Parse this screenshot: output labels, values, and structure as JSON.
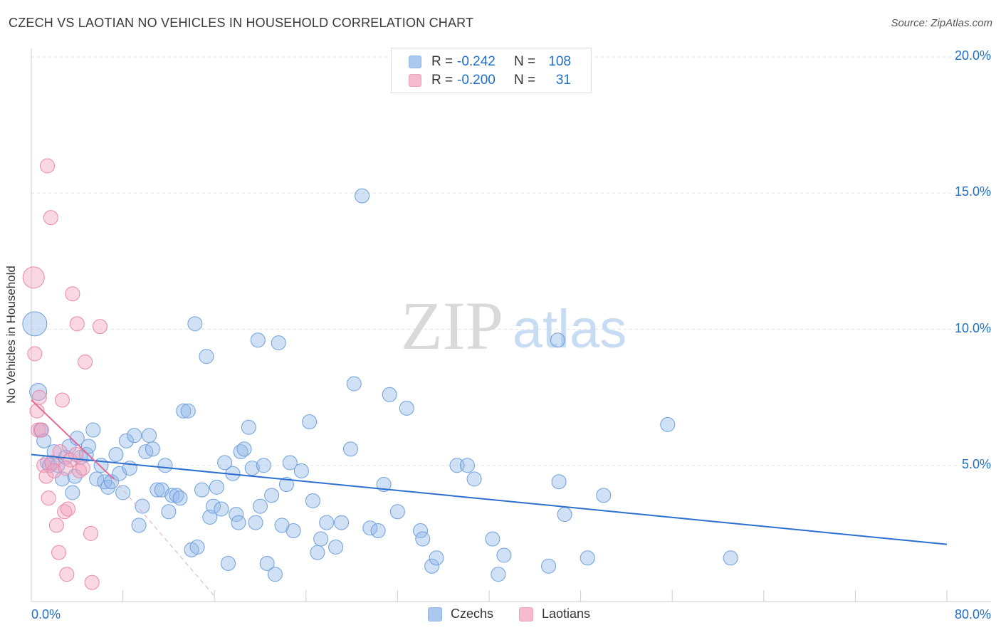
{
  "title": "CZECH VS LAOTIAN NO VEHICLES IN HOUSEHOLD CORRELATION CHART",
  "source": "Source: ZipAtlas.com",
  "watermark": {
    "zip": "ZIP",
    "atlas": "atlas"
  },
  "legend": [
    {
      "r_label": "R =",
      "r_value": "-0.242",
      "n_label": "N =",
      "n_value": "108",
      "color": "#8fb8ea"
    },
    {
      "r_label": "R =",
      "r_value": "-0.200",
      "n_label": "N =",
      "n_value": "31",
      "color": "#f2a3bd"
    }
  ],
  "chart_data": {
    "type": "scatter",
    "title": "CZECH VS LAOTIAN NO VEHICLES IN HOUSEHOLD CORRELATION CHART",
    "xlabel": "",
    "ylabel": "No Vehicles in Household",
    "xlim": [
      0,
      80
    ],
    "ylim": [
      0,
      20
    ],
    "x_tick_labels": [
      "0.0%",
      "80.0%"
    ],
    "y_ticks": [
      5,
      10,
      15,
      20
    ],
    "y_tick_labels": [
      "5.0%",
      "10.0%",
      "15.0%",
      "20.0%"
    ],
    "grid": true,
    "legend_position": "bottom",
    "series": [
      {
        "name": "Czechs",
        "color": "#8fb8ea",
        "stroke": "#6d9fdc",
        "trend": {
          "x": [
            0,
            80
          ],
          "y": [
            5.4,
            2.1
          ],
          "color": "#2b6fcf"
        },
        "points": [
          [
            0.3,
            10.2
          ],
          [
            0.6,
            7.7
          ],
          [
            0.8,
            6.3
          ],
          [
            1.1,
            5.9
          ],
          [
            1.4,
            5.1
          ],
          [
            1.6,
            5.0
          ],
          [
            2.0,
            5.5
          ],
          [
            2.3,
            5.0
          ],
          [
            2.7,
            4.5
          ],
          [
            3.0,
            5.3
          ],
          [
            3.3,
            5.7
          ],
          [
            3.6,
            4.0
          ],
          [
            3.8,
            4.6
          ],
          [
            4.0,
            6.0
          ],
          [
            4.3,
            5.3
          ],
          [
            4.8,
            5.4
          ],
          [
            5.0,
            5.7
          ],
          [
            5.4,
            6.3
          ],
          [
            5.7,
            4.5
          ],
          [
            6.1,
            5.0
          ],
          [
            6.4,
            4.4
          ],
          [
            6.7,
            4.2
          ],
          [
            7.0,
            4.4
          ],
          [
            7.4,
            5.4
          ],
          [
            7.7,
            4.7
          ],
          [
            8.0,
            4.0
          ],
          [
            8.3,
            5.9
          ],
          [
            8.6,
            4.9
          ],
          [
            9.0,
            6.1
          ],
          [
            9.4,
            2.8
          ],
          [
            9.7,
            3.5
          ],
          [
            10.0,
            5.5
          ],
          [
            10.3,
            6.1
          ],
          [
            10.6,
            5.6
          ],
          [
            11.0,
            4.1
          ],
          [
            11.4,
            4.1
          ],
          [
            11.7,
            5.0
          ],
          [
            12.0,
            3.3
          ],
          [
            12.3,
            3.9
          ],
          [
            12.7,
            3.9
          ],
          [
            13.0,
            3.8
          ],
          [
            13.3,
            7.0
          ],
          [
            13.7,
            7.0
          ],
          [
            14.0,
            1.9
          ],
          [
            14.3,
            10.2
          ],
          [
            14.5,
            2.0
          ],
          [
            14.9,
            4.1
          ],
          [
            15.3,
            9.0
          ],
          [
            15.6,
            3.1
          ],
          [
            15.9,
            3.5
          ],
          [
            16.2,
            4.2
          ],
          [
            16.6,
            3.4
          ],
          [
            16.9,
            5.1
          ],
          [
            17.2,
            1.4
          ],
          [
            17.6,
            4.7
          ],
          [
            17.9,
            3.2
          ],
          [
            18.1,
            2.9
          ],
          [
            18.3,
            5.5
          ],
          [
            18.6,
            5.6
          ],
          [
            19.0,
            6.4
          ],
          [
            19.3,
            4.9
          ],
          [
            19.6,
            2.9
          ],
          [
            19.8,
            9.6
          ],
          [
            20.0,
            3.5
          ],
          [
            20.3,
            5.0
          ],
          [
            20.6,
            1.4
          ],
          [
            21.0,
            3.9
          ],
          [
            21.3,
            1.0
          ],
          [
            21.6,
            9.5
          ],
          [
            21.9,
            2.8
          ],
          [
            22.3,
            4.3
          ],
          [
            22.6,
            5.1
          ],
          [
            22.9,
            2.6
          ],
          [
            23.6,
            4.8
          ],
          [
            24.3,
            6.6
          ],
          [
            24.6,
            3.7
          ],
          [
            25.0,
            1.8
          ],
          [
            25.3,
            2.3
          ],
          [
            25.8,
            2.9
          ],
          [
            26.6,
            2.0
          ],
          [
            27.1,
            2.9
          ],
          [
            27.9,
            5.6
          ],
          [
            28.2,
            8.0
          ],
          [
            28.9,
            14.9
          ],
          [
            29.6,
            2.7
          ],
          [
            30.3,
            2.6
          ],
          [
            30.8,
            4.3
          ],
          [
            31.3,
            7.6
          ],
          [
            32.0,
            3.3
          ],
          [
            32.8,
            7.1
          ],
          [
            34.0,
            2.6
          ],
          [
            34.2,
            2.3
          ],
          [
            35.0,
            1.3
          ],
          [
            35.4,
            1.6
          ],
          [
            37.2,
            5.0
          ],
          [
            38.1,
            5.0
          ],
          [
            38.7,
            4.5
          ],
          [
            40.3,
            2.3
          ],
          [
            40.8,
            1.0
          ],
          [
            41.3,
            1.7
          ],
          [
            45.2,
            1.3
          ],
          [
            46.1,
            4.4
          ],
          [
            46.6,
            3.2
          ],
          [
            46.0,
            9.6
          ],
          [
            48.6,
            1.6
          ],
          [
            50.0,
            3.9
          ],
          [
            55.6,
            6.5
          ],
          [
            61.1,
            1.6
          ]
        ]
      },
      {
        "name": "Laotians",
        "color": "#f2a3bd",
        "stroke": "#ea86a8",
        "trend": {
          "x": [
            0,
            7.2
          ],
          "y": [
            7.4,
            4.5
          ],
          "color": "#e46a94",
          "dash_to": [
            16.0,
            0.2
          ]
        },
        "points": [
          [
            0.2,
            11.9
          ],
          [
            0.3,
            9.1
          ],
          [
            0.5,
            7.0
          ],
          [
            0.6,
            6.3
          ],
          [
            0.7,
            7.5
          ],
          [
            0.9,
            6.3
          ],
          [
            1.1,
            5.0
          ],
          [
            1.3,
            4.6
          ],
          [
            1.4,
            16.0
          ],
          [
            1.5,
            3.8
          ],
          [
            1.7,
            14.1
          ],
          [
            1.8,
            5.1
          ],
          [
            2.0,
            4.8
          ],
          [
            2.2,
            2.8
          ],
          [
            2.4,
            1.8
          ],
          [
            2.5,
            5.5
          ],
          [
            2.7,
            7.4
          ],
          [
            2.9,
            3.3
          ],
          [
            3.1,
            1.0
          ],
          [
            3.2,
            3.4
          ],
          [
            3.4,
            5.2
          ],
          [
            3.6,
            11.3
          ],
          [
            4.0,
            10.2
          ],
          [
            4.2,
            4.8
          ],
          [
            4.5,
            4.9
          ],
          [
            4.7,
            8.8
          ],
          [
            5.2,
            2.5
          ],
          [
            5.3,
            0.7
          ],
          [
            6.0,
            10.1
          ],
          [
            3.9,
            5.4
          ],
          [
            3.0,
            4.9
          ]
        ]
      }
    ]
  }
}
